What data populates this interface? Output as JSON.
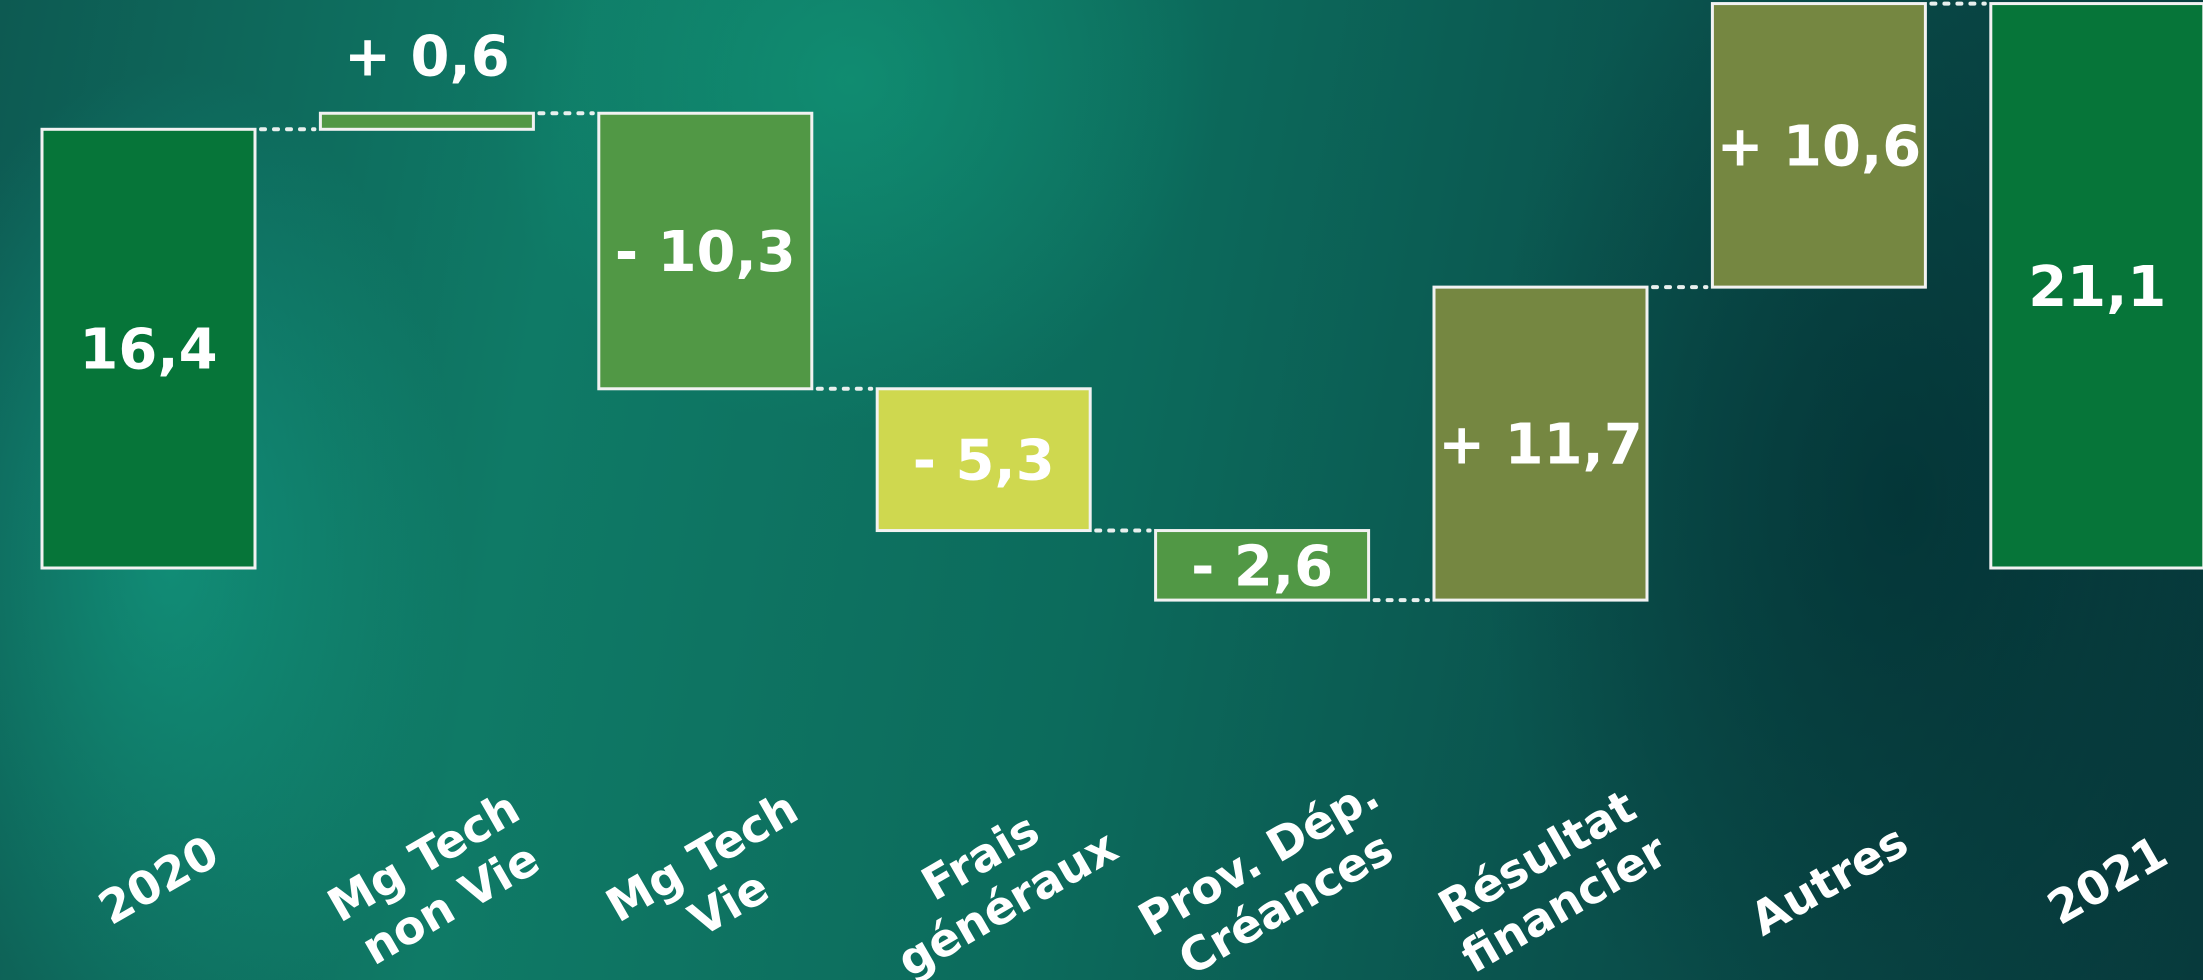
{
  "chart_data": {
    "type": "waterfall",
    "categories": [
      [
        "2020"
      ],
      [
        "Mg Tech",
        "non Vie"
      ],
      [
        "Mg Tech",
        "Vie"
      ],
      [
        "Frais",
        "généraux"
      ],
      [
        "Prov. Dép.",
        "Créances"
      ],
      [
        "Résultat",
        "financier"
      ],
      [
        "Autres"
      ],
      [
        "2021"
      ]
    ],
    "values": [
      16.4,
      0.6,
      -10.3,
      -5.3,
      -2.6,
      11.7,
      10.6,
      21.1
    ],
    "kinds": [
      "total",
      "delta",
      "delta",
      "delta",
      "delta",
      "delta",
      "delta",
      "total"
    ],
    "labels": [
      "16,4",
      "+ 0,6",
      "- 10,3",
      "- 5,3",
      "- 2,6",
      "+ 11,7",
      "+ 10,6",
      "21,1"
    ],
    "colors": [
      "#067539",
      "#519845",
      "#519845",
      "#cfd84f",
      "#519845",
      "#758741",
      "#758741",
      "#067539"
    ],
    "ylim": [
      0,
      21.2
    ],
    "legend": "none",
    "grid": false
  }
}
